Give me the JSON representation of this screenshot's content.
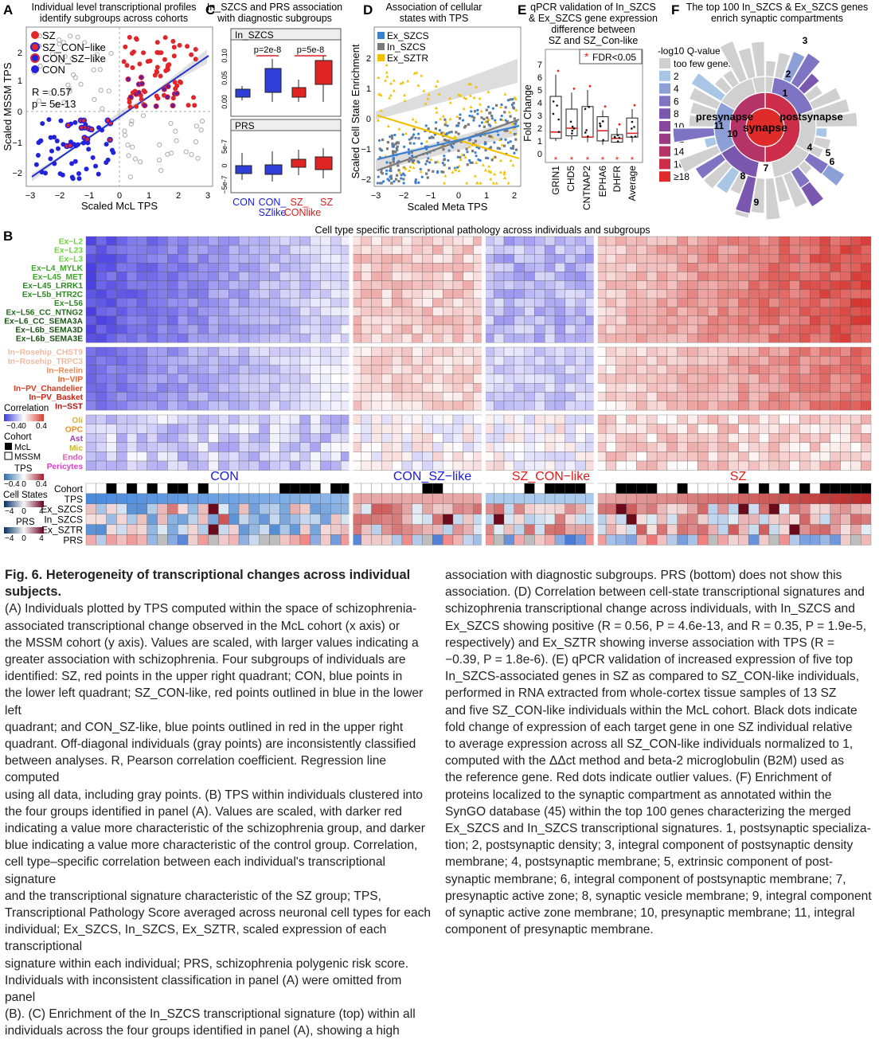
{
  "figure": {
    "panelA": {
      "letter": "A",
      "title_line1": "Individual level transcriptional profiles",
      "title_line2": "identify subgroups across cohorts",
      "xlabel": "Scaled McL TPS",
      "ylabel": "Scaled MSSM TPS",
      "legend": [
        "SZ",
        "SZ_CON−like",
        "CON_SZ−like",
        "CON"
      ],
      "stat_r": "R = 0.57",
      "stat_p": "p = 5e-13",
      "xticks": [
        "−3",
        "−2",
        "−1",
        "0",
        "1",
        "2",
        "3"
      ],
      "yticks": [
        "2",
        "1",
        "0",
        "−1",
        "−2"
      ]
    },
    "panelC": {
      "letter": "C",
      "title_line1": "In_SZCS and PRS association",
      "title_line2": "with diagnostic subgroups",
      "top_label": "In_SZCS",
      "top_p1": "p=2e-8",
      "top_p2": "p=5e-8",
      "top_yticks": [
        "0.10",
        "0.05",
        "0.00"
      ],
      "bottom_label": "PRS",
      "bottom_yticks": [
        "5e-7",
        "0",
        "−5e-7"
      ],
      "xcats": [
        "CON",
        "CON_",
        "SZlike",
        "SZ_",
        "CONlike",
        "SZ"
      ]
    },
    "panelD": {
      "letter": "D",
      "title_line1": "Association of cellular",
      "title_line2": "states with TPS",
      "legend": [
        "Ex_SZCS",
        "In_SZCS",
        "Ex_SZTR"
      ],
      "xlabel": "Scaled Meta TPS",
      "ylabel": "Scaled Cell State Enrichment",
      "xticks": [
        "−3",
        "−2",
        "−1",
        "0",
        "1",
        "2"
      ],
      "yticks": [
        "2",
        "1",
        "0",
        "−1",
        "−2"
      ]
    },
    "panelE": {
      "letter": "E",
      "title_line1": "qPCR validation of In_SZCS",
      "title_line2": "& Ex_SZCS gene expression",
      "title_line3": "difference between",
      "title_line4": "SZ and SZ_Con-like",
      "ylabel": "Fold Change",
      "fdr": "FDR<0.05",
      "yticks": [
        "7",
        "6",
        "5",
        "4",
        "3",
        "2",
        "1",
        "0"
      ],
      "genes": [
        "GRIN1",
        "CHD5",
        "CNTNAP2",
        "EPHA6",
        "DHFR",
        "Average"
      ]
    },
    "panelF": {
      "letter": "F",
      "title_line1": "The top 100 In_SZCS & Ex_SZCS genes",
      "title_line2": "enrich synaptic compartments",
      "legend_title": "-log10 Q-value",
      "legend_items": [
        "too few genes",
        "2",
        "4",
        "6",
        "8",
        "10",
        "12",
        "14",
        "16",
        "≥18"
      ],
      "legend_colors": [
        "#d0d0d0",
        "#a8c6e6",
        "#8c9fd6",
        "#7f73c4",
        "#7a58b0",
        "#87479c",
        "#9c3a86",
        "#b53468",
        "#cc2d48",
        "#e02b2b"
      ],
      "center": "synapse",
      "left_label": "presynapse",
      "right_label": "postsynapse",
      "numbers": [
        "1",
        "2",
        "3",
        "4",
        "5",
        "6",
        "7",
        "8",
        "9",
        "10",
        "11"
      ]
    },
    "panelB": {
      "letter": "B",
      "title": "Cell type specific transcriptional pathology across individuals and subgroups",
      "rows_ex": [
        "Ex−L2",
        "Ex−L23",
        "Ex−L3",
        "Ex−L4_MYLK",
        "Ex−L45_MET",
        "Ex−L45_LRRK1",
        "Ex−L5b_HTR2C",
        "Ex−L56",
        "Ex−L56_CC_NTNG2",
        "Ex−L6_CC_SEMA3A",
        "Ex−L6b_SEMA3D",
        "Ex−L6b_SEMA3E"
      ],
      "rows_in": [
        "In−Rosehip_CHST9",
        "In−Rosehip_TRPC3",
        "In−Reelin",
        "In−VIP",
        "In−PV_Chandelier",
        "In−PV_Basket",
        "In−SST"
      ],
      "rows_glia": [
        "Oli",
        "OPC",
        "Ast",
        "Mic",
        "Endo",
        "Pericytes"
      ],
      "rows_bottom": [
        "Cohort",
        "TPS",
        "Ex_SZCS",
        "In_SZCS",
        "Ex_SZTR",
        "PRS"
      ],
      "group_labels": [
        "CON",
        "CON_SZ−like",
        "SZ_CON−like",
        "SZ"
      ],
      "legend_correlation": "Correlation",
      "legend_corr_ticks": [
        "−0.4",
        "0",
        "0.4"
      ],
      "legend_cohort": "Cohort",
      "legend_cohort_items": [
        "McL",
        "MSSM"
      ],
      "legend_tps": "TPS",
      "legend_tps_ticks": [
        "−0.4",
        "0",
        "0.4"
      ],
      "legend_cellstates": "Cell States",
      "legend_cs_ticks": [
        "−4",
        "0",
        "4"
      ],
      "legend_prs": "PRS",
      "legend_prs_ticks": [
        "−4",
        "0",
        "4"
      ]
    }
  },
  "caption": {
    "title": "Fig. 6. Heterogeneity of transcriptional changes across individual subjects.",
    "col1": [
      "(A) Individuals plotted by TPS computed within the space of schizophrenia-",
      "associated transcriptional change observed in the McL cohort (x axis) or",
      "the MSSM cohort (y axis). Values are scaled, with larger values indicating a",
      "greater association with schizophrenia. Four subgroups of individuals are",
      "identified: SZ, red points in the upper right quadrant; CON, blue points in",
      "the lower left quadrant; SZ_CON-like, red points outlined in blue in the lower left",
      "quadrant; and CON_SZ-like, blue points outlined in red in the upper right",
      "quadrant. Off-diagonal individuals (gray points) are inconsistently classified",
      "between analyses. R, Pearson correlation coefficient. Regression line computed",
      "using all data, including gray points. (B) TPS within individuals clustered into",
      "the four groups identified in panel (A). Values are scaled, with darker red",
      "indicating a value more characteristic of the schizophrenia group, and darker",
      "blue indicating a value more characteristic of the control group. Correlation,",
      "cell type–specific correlation between each individual's transcriptional signature",
      "and the transcriptional signature characteristic of the SZ group; TPS,",
      "Transcriptional Pathology Score averaged across neuronal cell types for each",
      "individual; Ex_SZCS, In_SZCS, Ex_SZTR, scaled expression of each transcriptional",
      "signature within each individual; PRS, schizophrenia polygenic risk score.",
      "Individuals with inconsistent classification in panel (A) were omitted from panel",
      "(B). (C) Enrichment of the In_SZCS transcriptional signature (top) within all",
      "individuals across the four groups identified in panel (A), showing a high"
    ],
    "col2": [
      "association with diagnostic subgroups. PRS (bottom) does not show this",
      "association. (D) Correlation between cell-state transcriptional signatures and",
      "schizophrenia transcriptional change across individuals, with In_SZCS and",
      "Ex_SZCS showing positive (R = 0.56, P = 4.6e-13, and R = 0.35, P = 1.9e-5,",
      "respectively) and Ex_SZTR showing inverse association with TPS (R =",
      "−0.39, P = 1.8e-6). (E) qPCR validation of increased expression of five top",
      "In_SZCS-associated genes in SZ as compared to SZ_CON-like individuals,",
      "performed in RNA extracted from whole-cortex tissue samples of 13 SZ",
      "and five SZ_CON-like individuals within the McL cohort. Black dots indicate",
      "fold change of expression of each target gene in one SZ individual relative",
      "to average expression across all SZ_CON-like individuals normalized to 1,",
      "computed with the ΔΔct method and beta-2 microglobulin (B2M) used as",
      "the reference gene. Red dots indicate outlier values. (F) Enrichment of",
      "proteins localized to the synaptic compartment as annotated within the",
      "SynGO database (45) within the top 100 genes characterizing the merged",
      "Ex_SZCS and In_SZCS transcriptional signatures. 1, postsynaptic specializa-",
      "tion; 2, postsynaptic density; 3, integral component of postsynaptic density",
      "membrane; 4, postsynaptic membrane; 5, extrinsic component of post-",
      "synaptic membrane; 6, integral component of postsynaptic membrane; 7,",
      "presynaptic active zone; 8, synaptic vesicle membrane; 9, integral component",
      "of synaptic active zone membrane; 10, presynaptic membrane; 11, integral",
      "component of presynaptic membrane."
    ]
  }
}
